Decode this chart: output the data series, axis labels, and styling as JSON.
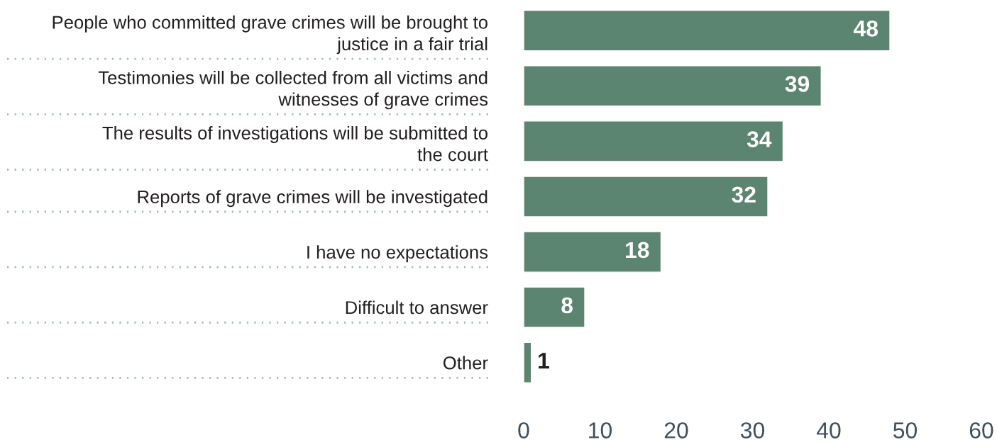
{
  "chart_data": {
    "type": "bar",
    "orientation": "horizontal",
    "categories": [
      "People who committed grave crimes will be brought to\njustice in a fair trial",
      "Testimonies will be collected from all victims and\nwitnesses of grave crimes",
      "The results of investigations will be submitted to\nthe court",
      "Reports of grave crimes will be investigated",
      "I have no expectations",
      "Difficult to answer",
      "Other"
    ],
    "values": [
      48,
      39,
      34,
      32,
      18,
      8,
      1
    ],
    "color": "#5c8571",
    "xlim": [
      0,
      60
    ],
    "xticks": [
      0,
      10,
      20,
      30,
      40,
      50,
      60
    ],
    "data_labels": true
  }
}
